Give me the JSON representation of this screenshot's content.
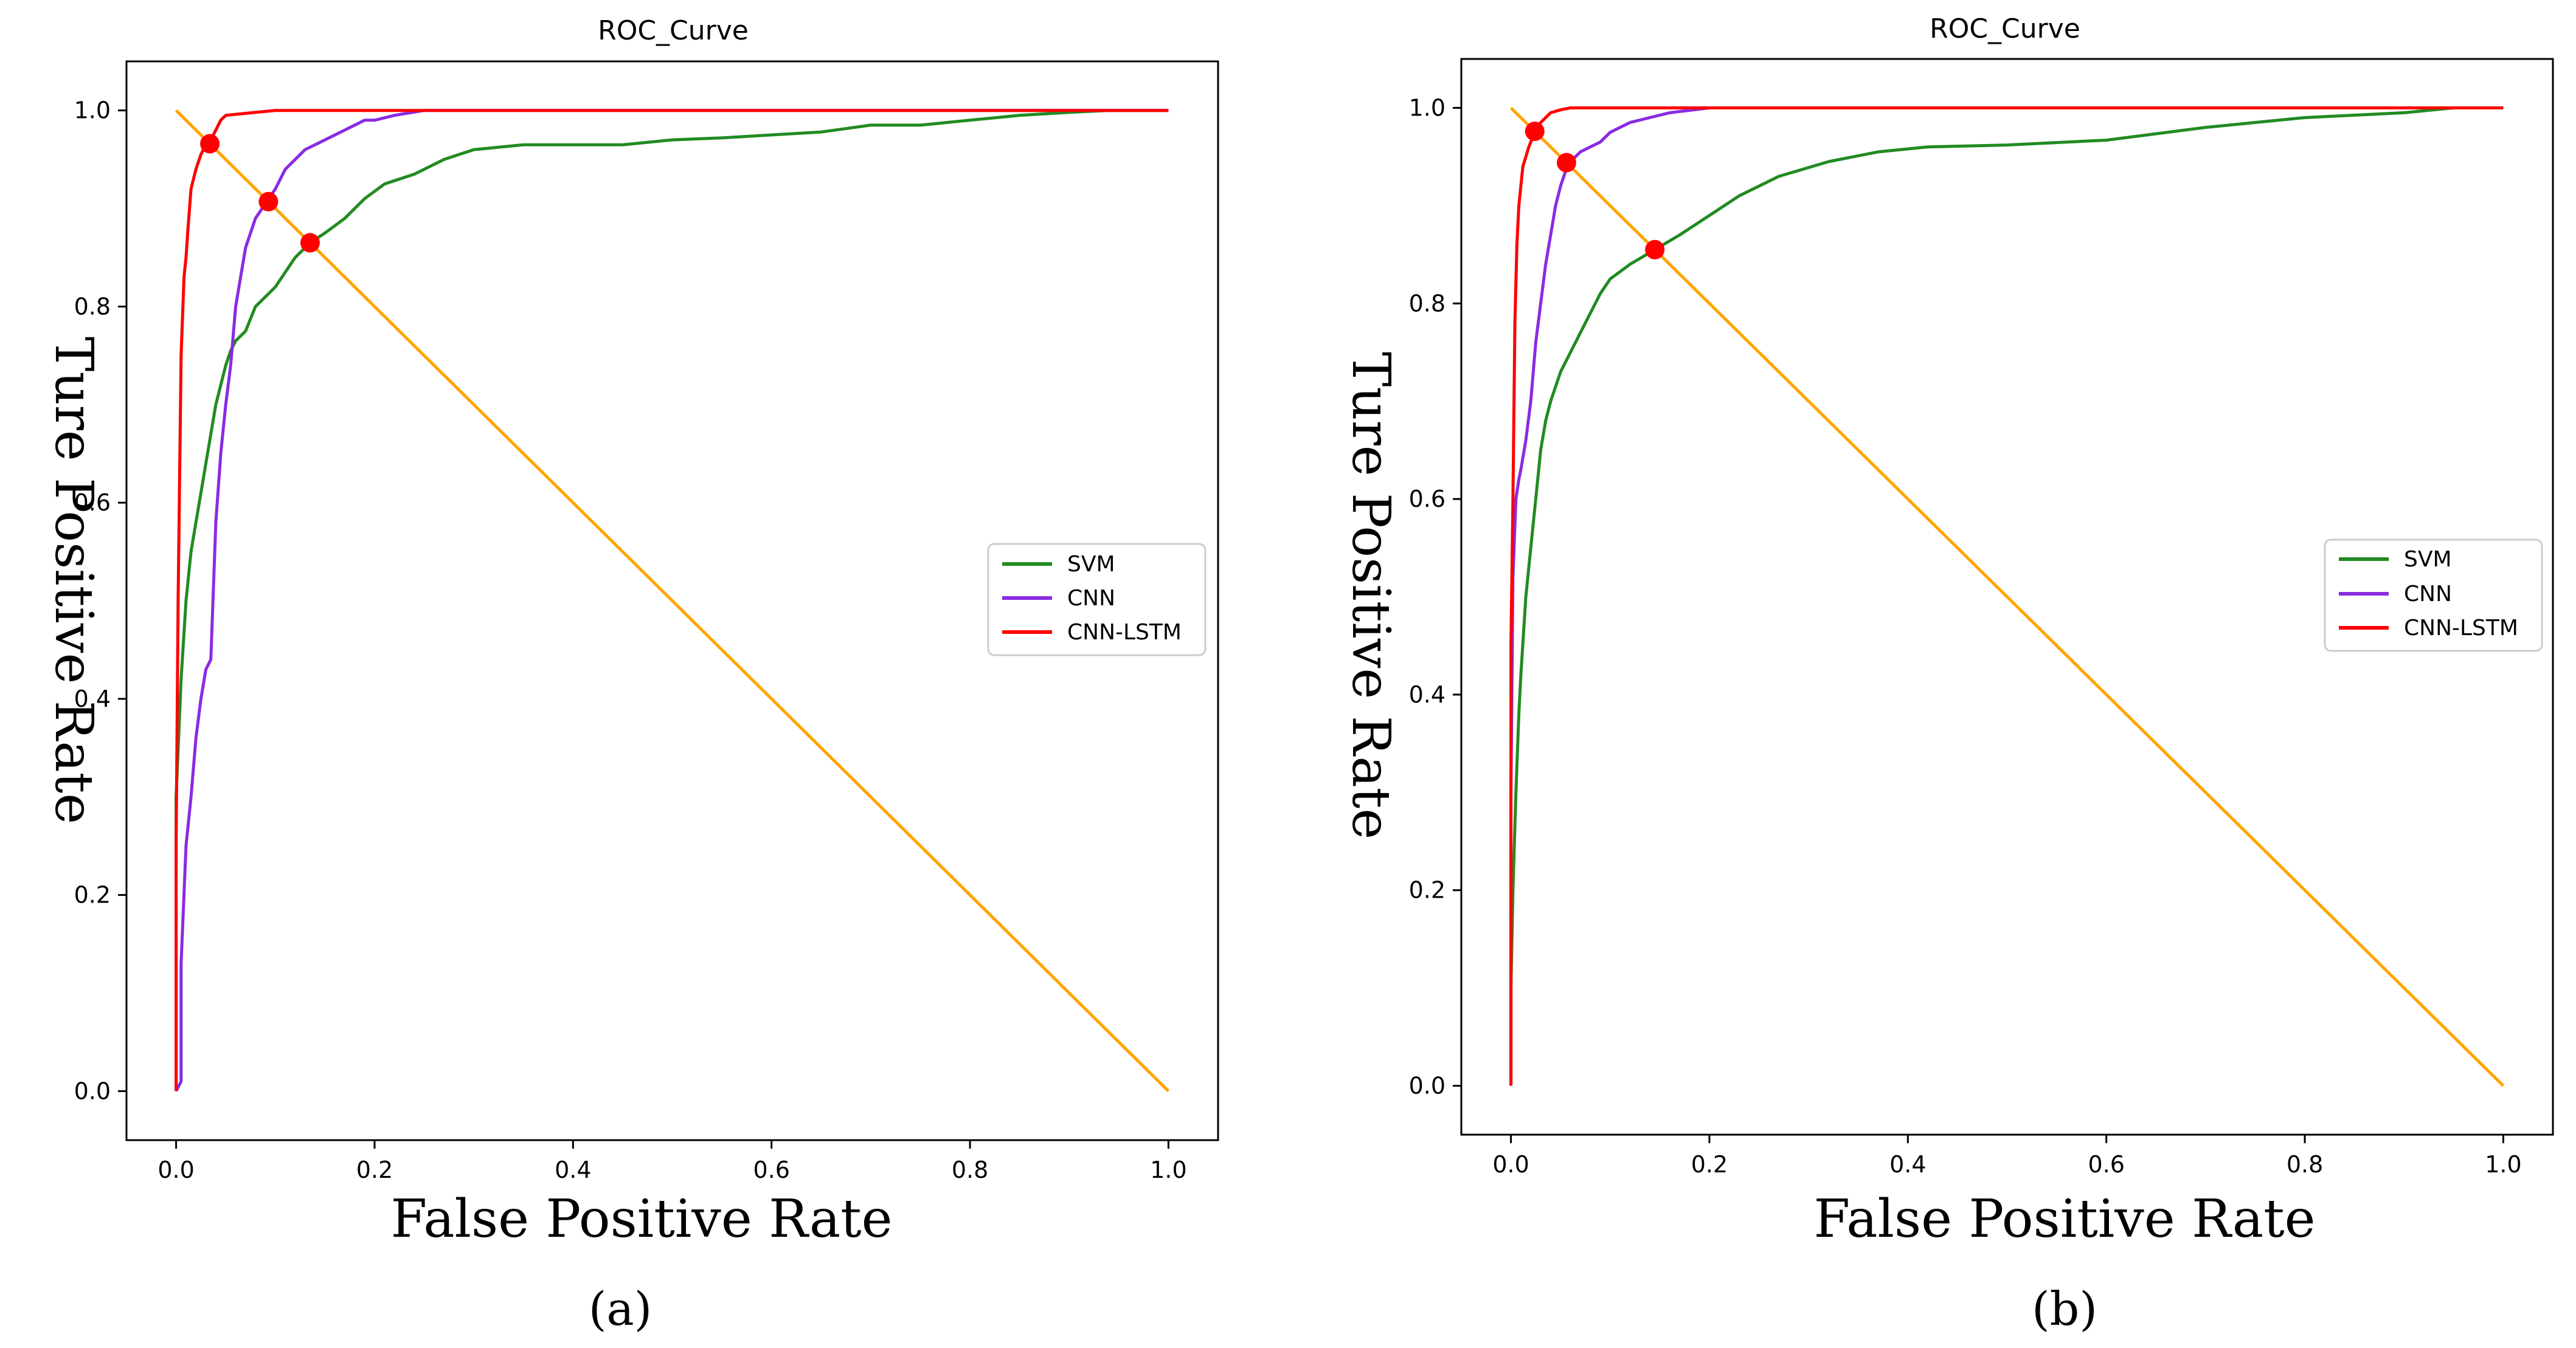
{
  "figure": {
    "panels": [
      {
        "subtitle": "ROC_Curve",
        "xlabel": "False Positive Rate",
        "ylabel": "Ture Positive Rate",
        "caption": "(a)",
        "legend": [
          "SVM",
          "CNN",
          "CNN-LSTM"
        ]
      },
      {
        "subtitle": "ROC_Curve",
        "xlabel": "False Positive Rate",
        "ylabel": "Ture Positive Rate",
        "caption": "(b)",
        "legend": [
          "SVM",
          "CNN",
          "CNN-LSTM"
        ]
      }
    ]
  },
  "chart_data": [
    {
      "type": "line",
      "title": "ROC_Curve",
      "caption": "(a)",
      "xlabel": "False Positive Rate",
      "ylabel": "Ture Positive Rate",
      "xlim": [
        -0.05,
        1.05
      ],
      "ylim": [
        -0.05,
        1.05
      ],
      "xticks": [
        "0.0",
        "0.2",
        "0.4",
        "0.6",
        "0.8",
        "1.0"
      ],
      "yticks": [
        "0.0",
        "0.2",
        "0.4",
        "0.6",
        "0.8",
        "1.0"
      ],
      "legend_position": "center-right",
      "colors": {
        "SVM": "#228B22",
        "CNN": "#8A2BE2",
        "CNN-LSTM": "#FF0000",
        "diagonal": "#FFA500",
        "marker": "#FF0000"
      },
      "series": [
        {
          "name": "SVM",
          "color": "#228B22",
          "x": [
            0,
            0,
            0.005,
            0.01,
            0.015,
            0.02,
            0.025,
            0.03,
            0.035,
            0.04,
            0.045,
            0.05,
            0.055,
            0.06,
            0.07,
            0.08,
            0.09,
            0.1,
            0.11,
            0.12,
            0.135,
            0.15,
            0.17,
            0.19,
            0.21,
            0.24,
            0.27,
            0.3,
            0.35,
            0.4,
            0.45,
            0.5,
            0.55,
            0.6,
            0.65,
            0.7,
            0.75,
            0.8,
            0.85,
            0.9,
            0.94,
            1.0
          ],
          "y": [
            0,
            0.3,
            0.42,
            0.5,
            0.55,
            0.58,
            0.61,
            0.64,
            0.67,
            0.7,
            0.72,
            0.74,
            0.755,
            0.765,
            0.775,
            0.8,
            0.81,
            0.82,
            0.835,
            0.85,
            0.865,
            0.875,
            0.89,
            0.91,
            0.925,
            0.935,
            0.95,
            0.96,
            0.965,
            0.965,
            0.965,
            0.97,
            0.972,
            0.975,
            0.978,
            0.985,
            0.985,
            0.99,
            0.995,
            0.998,
            1.0,
            1.0
          ]
        },
        {
          "name": "CNN",
          "color": "#8A2BE2",
          "x": [
            0,
            0.005,
            0.005,
            0.01,
            0.015,
            0.02,
            0.025,
            0.03,
            0.035,
            0.04,
            0.045,
            0.05,
            0.055,
            0.06,
            0.07,
            0.08,
            0.09,
            0.1,
            0.11,
            0.12,
            0.13,
            0.14,
            0.15,
            0.17,
            0.19,
            0.2,
            0.22,
            0.25,
            0.3,
            0.35,
            0.4,
            1.0
          ],
          "y": [
            0,
            0.01,
            0.13,
            0.25,
            0.3,
            0.36,
            0.4,
            0.43,
            0.44,
            0.58,
            0.65,
            0.7,
            0.74,
            0.8,
            0.86,
            0.89,
            0.905,
            0.92,
            0.94,
            0.95,
            0.96,
            0.965,
            0.97,
            0.98,
            0.99,
            0.99,
            0.995,
            1.0,
            1.0,
            1.0,
            1.0,
            1.0
          ]
        },
        {
          "name": "CNN-LSTM",
          "color": "#FF0000",
          "x": [
            0,
            0,
            0.002,
            0.005,
            0.008,
            0.01,
            0.012,
            0.015,
            0.02,
            0.025,
            0.03,
            0.035,
            0.04,
            0.045,
            0.05,
            0.06,
            0.07,
            0.08,
            0.1,
            0.12,
            1.0
          ],
          "y": [
            0,
            0.25,
            0.5,
            0.75,
            0.83,
            0.85,
            0.88,
            0.92,
            0.94,
            0.955,
            0.965,
            0.97,
            0.98,
            0.99,
            0.995,
            0.996,
            0.997,
            0.998,
            1.0,
            1.0,
            1.0
          ]
        },
        {
          "name": "diagonal",
          "color": "#FFA500",
          "x": [
            0,
            1
          ],
          "y": [
            1,
            0
          ]
        }
      ],
      "points": [
        {
          "series": "CNN-LSTM",
          "x": 0.034,
          "y": 0.966
        },
        {
          "series": "CNN",
          "x": 0.093,
          "y": 0.907
        },
        {
          "series": "SVM",
          "x": 0.135,
          "y": 0.865
        }
      ]
    },
    {
      "type": "line",
      "title": "ROC_Curve",
      "caption": "(b)",
      "xlabel": "False Positive Rate",
      "ylabel": "Ture Positive Rate",
      "xlim": [
        -0.05,
        1.05
      ],
      "ylim": [
        -0.05,
        1.05
      ],
      "xticks": [
        "0.0",
        "0.2",
        "0.4",
        "0.6",
        "0.8",
        "1.0"
      ],
      "yticks": [
        "0.0",
        "0.2",
        "0.4",
        "0.6",
        "0.8",
        "1.0"
      ],
      "legend_position": "center-right",
      "colors": {
        "SVM": "#228B22",
        "CNN": "#8A2BE2",
        "CNN-LSTM": "#FF0000",
        "diagonal": "#FFA500",
        "marker": "#FF0000"
      },
      "series": [
        {
          "name": "SVM",
          "color": "#228B22",
          "x": [
            0,
            0,
            0.002,
            0.005,
            0.008,
            0.01,
            0.015,
            0.02,
            0.025,
            0.03,
            0.035,
            0.04,
            0.05,
            0.06,
            0.07,
            0.08,
            0.09,
            0.1,
            0.12,
            0.145,
            0.17,
            0.2,
            0.23,
            0.27,
            0.32,
            0.37,
            0.42,
            0.5,
            0.6,
            0.7,
            0.8,
            0.9,
            0.95,
            1.0
          ],
          "y": [
            0,
            0.1,
            0.2,
            0.3,
            0.38,
            0.42,
            0.5,
            0.55,
            0.6,
            0.65,
            0.68,
            0.7,
            0.73,
            0.75,
            0.77,
            0.79,
            0.81,
            0.825,
            0.84,
            0.855,
            0.87,
            0.89,
            0.91,
            0.93,
            0.945,
            0.955,
            0.96,
            0.962,
            0.967,
            0.98,
            0.99,
            0.995,
            1.0,
            1.0
          ]
        },
        {
          "name": "CNN",
          "color": "#8A2BE2",
          "x": [
            0,
            0,
            0.002,
            0.005,
            0.008,
            0.01,
            0.015,
            0.02,
            0.025,
            0.03,
            0.035,
            0.04,
            0.045,
            0.05,
            0.055,
            0.06,
            0.07,
            0.08,
            0.09,
            0.1,
            0.12,
            0.14,
            0.16,
            0.2,
            0.25,
            1.0
          ],
          "y": [
            0,
            0.3,
            0.52,
            0.6,
            0.62,
            0.63,
            0.66,
            0.7,
            0.76,
            0.8,
            0.84,
            0.87,
            0.9,
            0.92,
            0.935,
            0.945,
            0.955,
            0.96,
            0.965,
            0.975,
            0.985,
            0.99,
            0.995,
            1.0,
            1.0,
            1.0
          ]
        },
        {
          "name": "CNN-LSTM",
          "color": "#FF0000",
          "x": [
            0,
            0,
            0.002,
            0.004,
            0.006,
            0.008,
            0.01,
            0.012,
            0.015,
            0.018,
            0.02,
            0.023,
            0.026,
            0.03,
            0.035,
            0.04,
            0.05,
            0.06,
            0.08,
            0.12,
            1.0
          ],
          "y": [
            0,
            0.45,
            0.6,
            0.78,
            0.86,
            0.9,
            0.92,
            0.94,
            0.95,
            0.96,
            0.965,
            0.972,
            0.98,
            0.985,
            0.99,
            0.995,
            0.998,
            1.0,
            1.0,
            1.0,
            1.0
          ]
        },
        {
          "name": "diagonal",
          "color": "#FFA500",
          "x": [
            0,
            1
          ],
          "y": [
            1,
            0
          ]
        }
      ],
      "points": [
        {
          "series": "CNN-LSTM",
          "x": 0.024,
          "y": 0.976
        },
        {
          "series": "CNN",
          "x": 0.056,
          "y": 0.944
        },
        {
          "series": "SVM",
          "x": 0.145,
          "y": 0.855
        }
      ]
    }
  ]
}
